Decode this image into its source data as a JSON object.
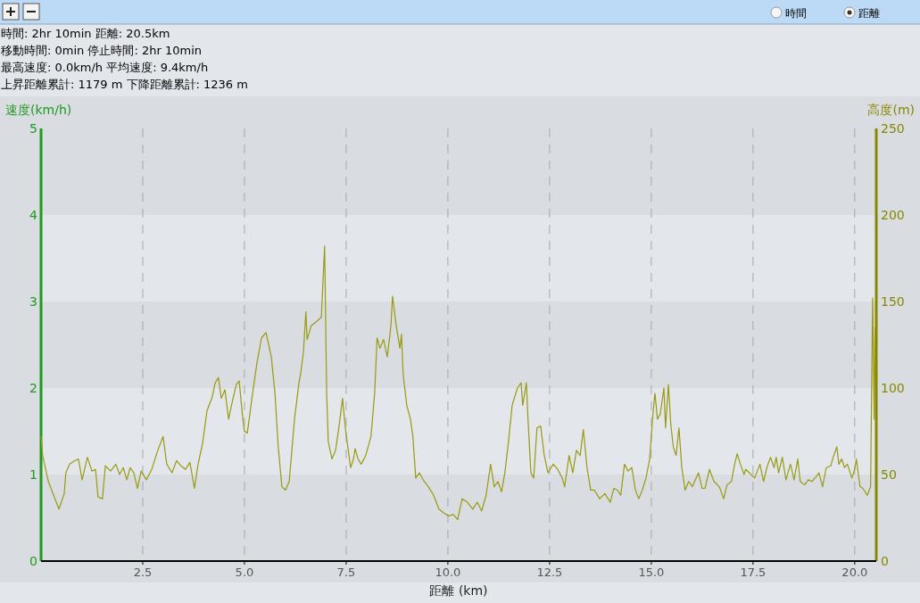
{
  "chart_data": {
    "type": "line",
    "annotations": [
      "時間: 2hr 10min 距離: 20.5km",
      "移動時間: 0min 停止時間: 2hr 10min",
      "最高速度: 0.0km/h 平均速度: 9.4km/h",
      "上昇距離累計: 1179 m 下降距離累計: 1236 m",
      "時間",
      "距離"
    ],
    "xlabel": "距離 (km)",
    "ylabel": "速度(km/h)",
    "y2label": "高度(m)",
    "xlim": [
      0,
      20.53
    ],
    "xticks": [
      2.5,
      {
        "value": 5,
        "label": "5.0"
      },
      7.5,
      {
        "value": 10,
        "label": "10.0"
      },
      12.5,
      {
        "value": 15,
        "label": "15.0"
      },
      17.5,
      {
        "value": 20,
        "label": "20.0"
      }
    ],
    "ylim": [
      0,
      5
    ],
    "yticks": [
      0,
      1,
      2,
      3,
      4,
      5
    ],
    "y2lim": [
      0,
      250
    ],
    "y2ticks": [
      0,
      50,
      100,
      150,
      200,
      250
    ],
    "grid": "x",
    "series": [
      {
        "axis": "y2",
        "color": "#999a10",
        "x": [
          0,
          0.04,
          0.18,
          0.31,
          0.44,
          0.57,
          0.61,
          0.7,
          0.83,
          0.92,
          1.01,
          1.14,
          1.25,
          1.34,
          1.4,
          1.51,
          1.58,
          1.71,
          1.84,
          1.93,
          2.02,
          2.11,
          2.19,
          2.28,
          2.37,
          2.46,
          2.59,
          2.72,
          2.87,
          3.0,
          3.09,
          3.22,
          3.33,
          3.44,
          3.55,
          3.66,
          3.77,
          3.86,
          3.97,
          4.08,
          4.21,
          4.28,
          4.36,
          4.43,
          4.52,
          4.61,
          4.69,
          4.8,
          4.87,
          4.96,
          5.0,
          5.07,
          5.2,
          5.31,
          5.42,
          5.53,
          5.66,
          5.75,
          5.83,
          5.92,
          6.01,
          6.1,
          6.23,
          6.34,
          6.38,
          6.45,
          6.51,
          6.54,
          6.64,
          6.75,
          6.89,
          6.97,
          7.02,
          7.06,
          7.15,
          7.24,
          7.32,
          7.41,
          7.48,
          7.54,
          7.61,
          7.68,
          7.72,
          7.79,
          7.87,
          7.98,
          8.11,
          8.2,
          8.26,
          8.33,
          8.42,
          8.51,
          8.6,
          8.64,
          8.73,
          8.82,
          8.86,
          8.9,
          8.99,
          9.08,
          9.14,
          9.21,
          9.3,
          9.39,
          9.52,
          9.65,
          9.78,
          9.89,
          10.02,
          10.13,
          10.24,
          10.35,
          10.48,
          10.61,
          10.72,
          10.83,
          10.94,
          11.05,
          11.14,
          11.23,
          11.32,
          11.4,
          11.49,
          11.58,
          11.71,
          11.8,
          11.84,
          11.93,
          11.97,
          12.04,
          12.11,
          12.19,
          12.28,
          12.37,
          12.46,
          12.59,
          12.7,
          12.81,
          12.87,
          12.98,
          13.07,
          13.16,
          13.25,
          13.33,
          13.42,
          13.51,
          13.6,
          13.73,
          13.86,
          13.99,
          14.08,
          14.17,
          14.25,
          14.34,
          14.43,
          14.52,
          14.61,
          14.69,
          14.78,
          14.87,
          14.96,
          15.04,
          15.09,
          15.15,
          15.22,
          15.31,
          15.35,
          15.42,
          15.48,
          15.54,
          15.61,
          15.68,
          15.75,
          15.83,
          15.92,
          16.01,
          16.16,
          16.25,
          16.32,
          16.43,
          16.54,
          16.67,
          16.78,
          16.86,
          16.97,
          17.04,
          17.11,
          17.19,
          17.28,
          17.32,
          17.41,
          17.54,
          17.67,
          17.76,
          17.84,
          17.93,
          18.02,
          18.07,
          18.13,
          18.22,
          18.31,
          18.42,
          18.51,
          18.6,
          18.66,
          18.77,
          18.86,
          18.95,
          19.06,
          19.12,
          19.21,
          19.3,
          19.41,
          19.47,
          19.56,
          19.61,
          19.68,
          19.75,
          19.82,
          19.93,
          20.0,
          20.04,
          20.13,
          20.2,
          20.31,
          20.39,
          20.44,
          20.48,
          20.5
        ],
        "values": [
          72,
          61,
          46,
          38,
          30,
          39,
          51,
          56,
          58,
          59,
          47,
          60,
          52,
          53,
          37,
          36,
          55,
          52,
          56,
          50,
          54,
          47,
          54,
          51,
          42,
          52,
          47,
          53,
          64,
          72,
          56,
          51,
          58,
          55,
          53,
          57,
          42,
          56,
          68,
          87,
          95,
          103,
          106,
          94,
          99,
          82,
          91,
          102,
          104,
          82,
          75,
          74,
          97,
          115,
          129,
          132,
          118,
          97,
          66,
          43,
          41,
          46,
          82,
          103,
          108,
          121,
          144,
          128,
          136,
          138,
          141,
          182,
          97,
          69,
          59,
          64,
          77,
          94,
          77,
          66,
          54,
          59,
          65,
          59,
          56,
          61,
          72,
          97,
          129,
          123,
          128,
          118,
          136,
          153,
          136,
          123,
          131,
          108,
          90,
          82,
          72,
          48,
          51,
          47,
          43,
          38,
          30,
          28,
          26,
          27,
          24,
          36,
          34,
          30,
          34,
          29,
          38,
          56,
          43,
          46,
          40,
          51,
          69,
          90,
          100,
          103,
          90,
          103,
          82,
          51,
          48,
          77,
          78,
          61,
          51,
          56,
          53,
          48,
          43,
          61,
          51,
          64,
          61,
          76,
          54,
          41,
          41,
          36,
          39,
          34,
          42,
          41,
          38,
          56,
          52,
          54,
          41,
          36,
          41,
          48,
          59,
          85,
          97,
          82,
          85,
          100,
          77,
          102,
          79,
          66,
          61,
          77,
          54,
          41,
          46,
          43,
          51,
          42,
          42,
          53,
          46,
          43,
          36,
          44,
          46,
          55,
          62,
          56,
          50,
          53,
          51,
          48,
          56,
          46,
          54,
          60,
          54,
          60,
          51,
          60,
          47,
          56,
          47,
          59,
          46,
          44,
          47,
          46,
          49,
          51,
          43,
          54,
          55,
          60,
          66,
          56,
          59,
          54,
          56,
          48,
          53,
          59,
          43,
          42,
          38,
          43,
          152,
          82,
          135
        ]
      }
    ]
  }
}
